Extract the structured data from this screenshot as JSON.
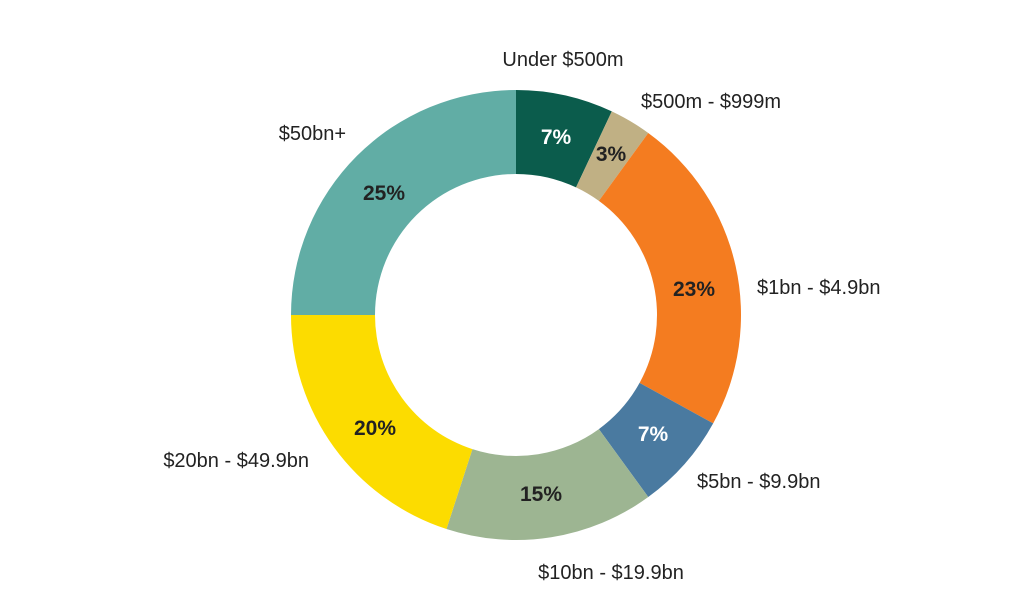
{
  "chart_data": {
    "type": "pie",
    "subtype": "donut",
    "title": "",
    "categories": [
      "Under $500m",
      "$500m - $999m",
      "$1bn - $4.9bn",
      "$5bn - $9.9bn",
      "$10bn - $19.9bn",
      "$20bn - $49.9bn",
      "$50bn+"
    ],
    "values": [
      7,
      3,
      23,
      7,
      15,
      20,
      25
    ],
    "value_labels": [
      "7%",
      "3%",
      "23%",
      "7%",
      "15%",
      "20%",
      "25%"
    ],
    "colors": [
      "#0b5c4c",
      "#c0b084",
      "#f47c20",
      "#4a7aa0",
      "#9db592",
      "#fcdc00",
      "#61ada5"
    ],
    "start": "top",
    "direction": "clockwise",
    "legend": "none"
  }
}
